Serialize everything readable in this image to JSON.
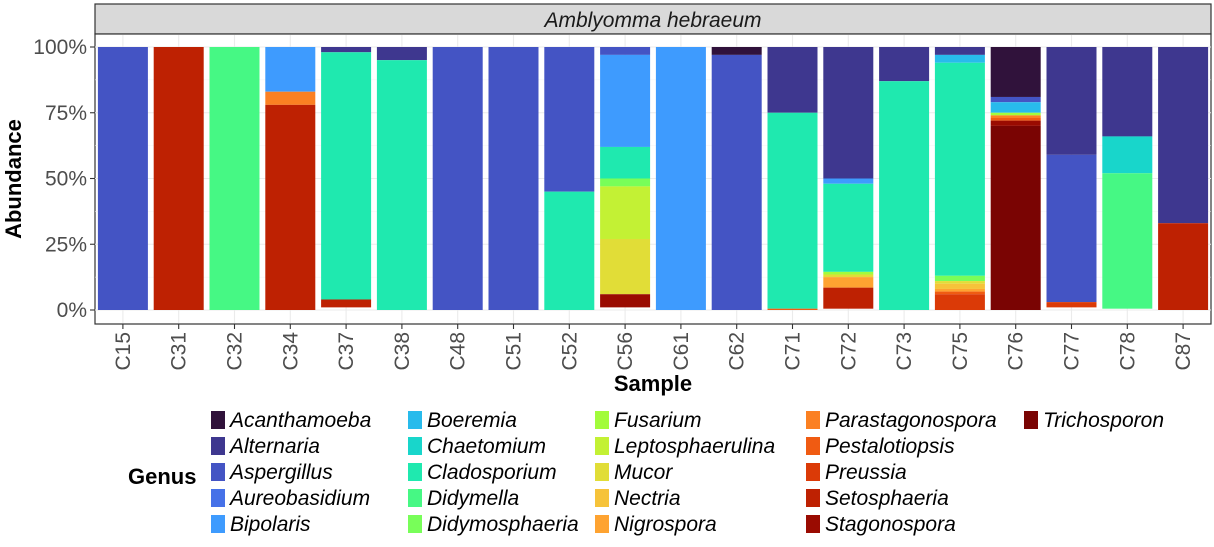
{
  "chart_data": {
    "type": "bar",
    "stacked": true,
    "facet_title": "Amblyomma hebraeum",
    "xlabel": "Sample",
    "ylabel": "Abundance",
    "ylim": [
      0,
      1
    ],
    "yticks": [
      0,
      0.25,
      0.5,
      0.75,
      1.0
    ],
    "yticklabels": [
      "0%",
      "25%",
      "50%",
      "75%",
      "100%"
    ],
    "legend_title": "Genus",
    "legend_position": "bottom",
    "grid": true,
    "categories": [
      "C15",
      "C31",
      "C32",
      "C34",
      "C37",
      "C38",
      "C48",
      "C51",
      "C52",
      "C56",
      "C61",
      "C62",
      "C71",
      "C72",
      "C73",
      "C75",
      "C76",
      "C77",
      "C78",
      "C87"
    ],
    "series": [
      {
        "name": "Acanthamoeba",
        "color": "#30123B",
        "values": [
          0,
          0,
          0,
          0,
          0,
          0,
          0,
          0,
          0,
          0,
          0,
          0.03,
          0,
          0,
          0,
          0,
          0.19,
          0,
          0,
          0
        ]
      },
      {
        "name": "Alternaria",
        "color": "#3E378F",
        "values": [
          0,
          0,
          0,
          0,
          0.02,
          0.05,
          0,
          0,
          0,
          0,
          0,
          0,
          0.25,
          0.5,
          0.13,
          0.03,
          0,
          0.41,
          0.34,
          0.67
        ]
      },
      {
        "name": "Aspergillus",
        "color": "#4454C4",
        "values": [
          1.0,
          0,
          0,
          0,
          0,
          0,
          1.0,
          1.0,
          0.55,
          0.03,
          0,
          0.97,
          0,
          0,
          0,
          0,
          0.02,
          0.56,
          0,
          0
        ]
      },
      {
        "name": "Aureobasidium",
        "color": "#4671E8",
        "values": [
          0,
          0,
          0,
          0,
          0,
          0,
          0,
          0,
          0,
          0,
          0,
          0,
          0,
          0,
          0,
          0,
          0,
          0,
          0,
          0
        ]
      },
      {
        "name": "Bipolaris",
        "color": "#3E9BFE",
        "values": [
          0,
          0,
          0,
          0.17,
          0,
          0,
          0,
          0,
          0,
          0.35,
          1.0,
          0,
          0,
          0.02,
          0,
          0,
          0,
          0,
          0,
          0
        ]
      },
      {
        "name": "Boeremia",
        "color": "#28BBEC",
        "values": [
          0,
          0,
          0,
          0,
          0,
          0,
          0,
          0,
          0,
          0,
          0,
          0,
          0,
          0,
          0,
          0.03,
          0.04,
          0,
          0,
          0
        ]
      },
      {
        "name": "Chaetomium",
        "color": "#18D6CB",
        "values": [
          0,
          0,
          0,
          0,
          0,
          0,
          0,
          0,
          0,
          0,
          0,
          0,
          0,
          0,
          0,
          0,
          0,
          0,
          0.14,
          0
        ]
      },
      {
        "name": "Cladosporium",
        "color": "#1FE9AF",
        "values": [
          0,
          0,
          0,
          0,
          0.94,
          0.95,
          0,
          0,
          0.45,
          0.12,
          0,
          0,
          0.745,
          0.335,
          0.87,
          0.81,
          0,
          0,
          0,
          0
        ]
      },
      {
        "name": "Didymella",
        "color": "#46F884",
        "values": [
          0,
          0,
          1.0,
          0,
          0,
          0,
          0,
          0,
          0,
          0,
          0,
          0,
          0,
          0,
          0,
          0,
          0,
          0,
          0.515,
          0
        ]
      },
      {
        "name": "Didymosphaeria",
        "color": "#78FE59",
        "values": [
          0,
          0,
          0,
          0,
          0,
          0,
          0,
          0,
          0,
          0.03,
          0,
          0,
          0,
          0,
          0,
          0.02,
          0,
          0,
          0,
          0
        ]
      },
      {
        "name": "Fusarium",
        "color": "#A2FC3C",
        "values": [
          0,
          0,
          0,
          0,
          0,
          0,
          0,
          0,
          0,
          0,
          0,
          0,
          0,
          0.01,
          0,
          0,
          0.01,
          0,
          0,
          0
        ]
      },
      {
        "name": "Leptosphaerulina",
        "color": "#C3F134",
        "values": [
          0,
          0,
          0,
          0,
          0,
          0,
          0,
          0,
          0,
          0.2,
          0,
          0,
          0,
          0,
          0,
          0,
          0,
          0,
          0,
          0
        ]
      },
      {
        "name": "Mucor",
        "color": "#E1DD37",
        "values": [
          0,
          0,
          0,
          0,
          0,
          0,
          0,
          0,
          0,
          0.21,
          0,
          0,
          0,
          0.01,
          0,
          0.01,
          0,
          0,
          0,
          0
        ]
      },
      {
        "name": "Nectria",
        "color": "#F6C33A",
        "values": [
          0,
          0,
          0,
          0,
          0,
          0,
          0,
          0,
          0,
          0,
          0,
          0,
          0,
          0,
          0,
          0.02,
          0,
          0,
          0,
          0
        ]
      },
      {
        "name": "Nigrospora",
        "color": "#FEA331",
        "values": [
          0,
          0,
          0,
          0,
          0,
          0,
          0,
          0,
          0,
          0,
          0,
          0,
          0,
          0.04,
          0,
          0.01,
          0,
          0,
          0,
          0
        ]
      },
      {
        "name": "Parastagonospora",
        "color": "#FB8022",
        "values": [
          0,
          0,
          0,
          0.05,
          0,
          0,
          0,
          0,
          0,
          0,
          0,
          0,
          0,
          0,
          0,
          0,
          0.01,
          0,
          0,
          0
        ]
      },
      {
        "name": "Pestalotiopsis",
        "color": "#F05B12",
        "values": [
          0,
          0,
          0,
          0,
          0,
          0,
          0,
          0,
          0,
          0,
          0,
          0,
          0.005,
          0,
          0,
          0.01,
          0.01,
          0,
          0,
          0
        ]
      },
      {
        "name": "Preussia",
        "color": "#DB3A07",
        "values": [
          0,
          0,
          0,
          0,
          0,
          0,
          0,
          0,
          0,
          0,
          0,
          0,
          0,
          0,
          0,
          0.06,
          0,
          0.02,
          0,
          0
        ]
      },
      {
        "name": "Setosphaeria",
        "color": "#BE2102",
        "values": [
          0,
          1.0,
          0,
          0.78,
          0.03,
          0,
          0,
          0,
          0,
          0,
          0,
          0,
          0,
          0.08,
          0,
          0,
          0,
          0,
          0,
          0.33
        ]
      },
      {
        "name": "Stagonospora",
        "color": "#9A0B01",
        "values": [
          0,
          0,
          0,
          0,
          0,
          0,
          0,
          0,
          0,
          0.05,
          0,
          0,
          0,
          0,
          0,
          0,
          0.02,
          0,
          0,
          0
        ]
      },
      {
        "name": "Trichosporon",
        "color": "#7A0403",
        "values": [
          0,
          0,
          0,
          0,
          0,
          0,
          0,
          0,
          0,
          0,
          0,
          0,
          0,
          0,
          0,
          0,
          0.7,
          0,
          0,
          0
        ]
      }
    ]
  }
}
